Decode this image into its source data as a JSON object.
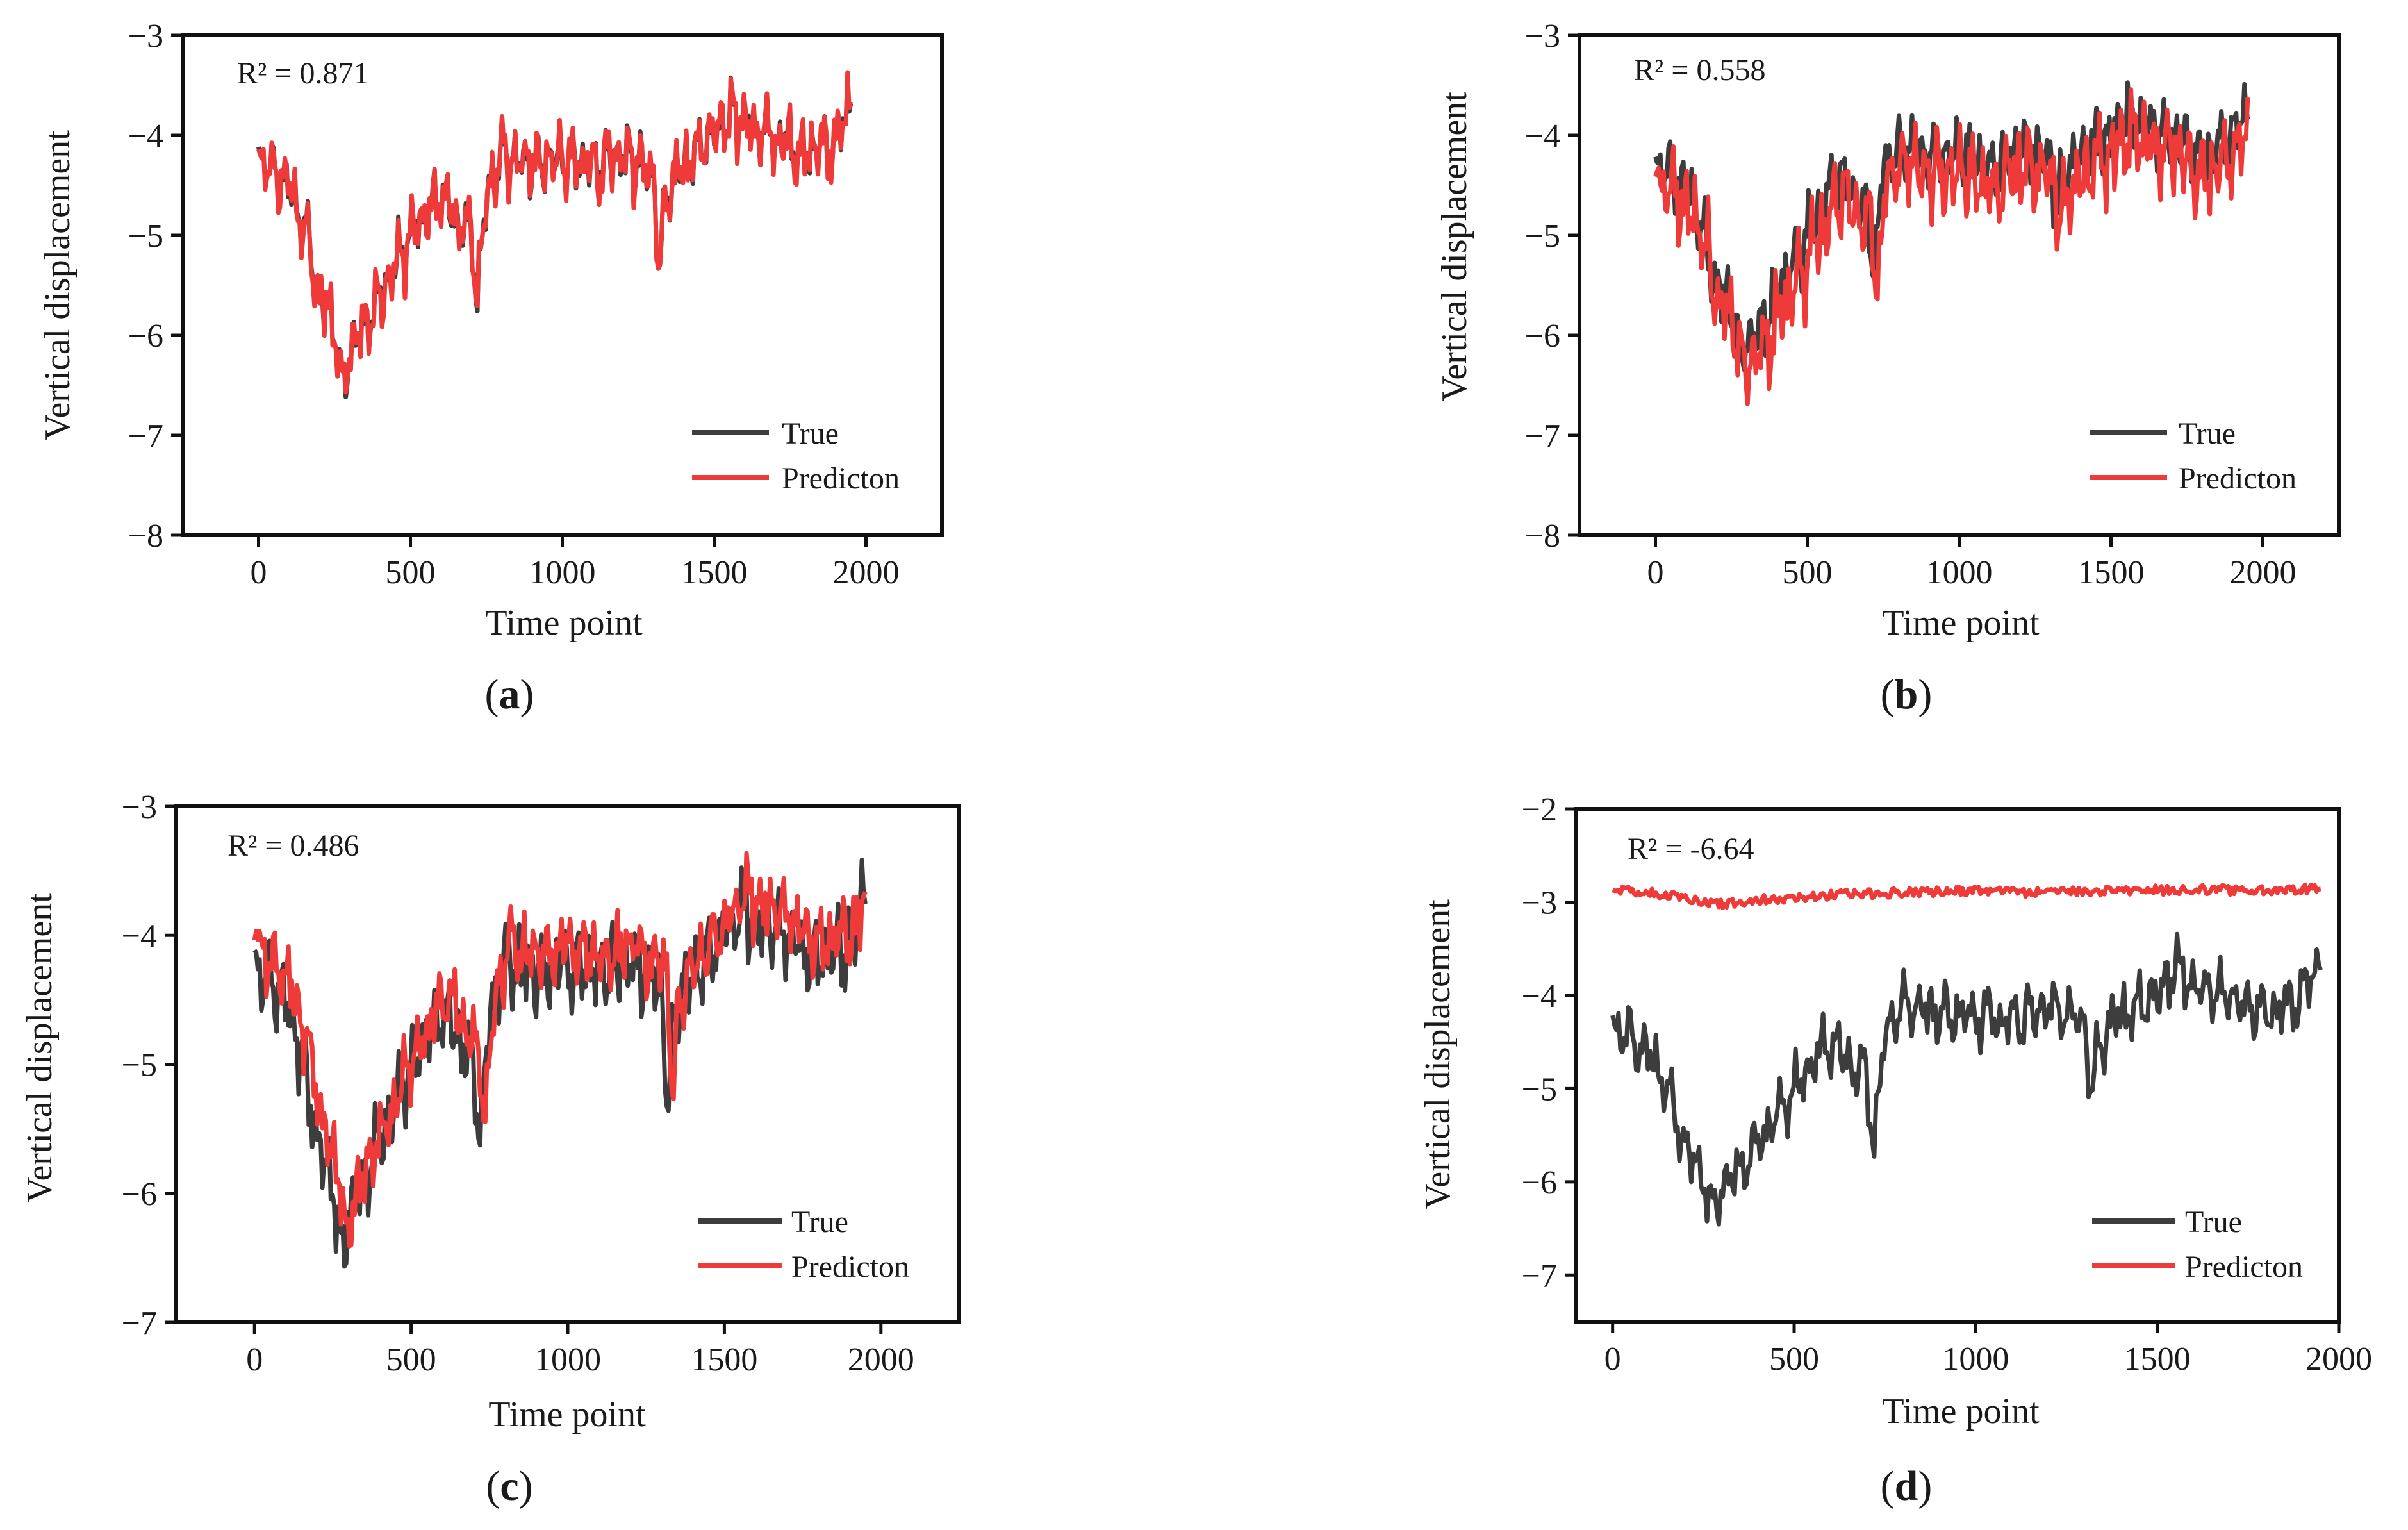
{
  "colors": {
    "true": "#3d3d3d",
    "prediction": "#ef3a3a",
    "axis": "#111111"
  },
  "chart_data": [
    {
      "type": "line",
      "panel_label": "a",
      "annotation": "R² = 0.871",
      "xlabel": "Time point",
      "ylabel": "Vertical displacement",
      "xlim": [
        -250,
        2250
      ],
      "ylim": [
        -8,
        -3
      ],
      "xticks": [
        0,
        500,
        1000,
        1500,
        2000
      ],
      "xtick_labels": [
        "0",
        "500",
        "1000",
        "1500",
        "2000"
      ],
      "yticks": [
        -3,
        -4,
        -5,
        -6,
        -7,
        -8
      ],
      "ytick_labels": [
        "−3",
        "−4",
        "−5",
        "−6",
        "−7",
        "−8"
      ],
      "legend": {
        "position": "bottom-right",
        "entries": [
          "True",
          "Predicton"
        ]
      },
      "pred_mode": "track",
      "pred_offset": 0.0,
      "pred_amp": 1.05,
      "pred_lag": 0,
      "noise": 0.06,
      "seed": 11,
      "series": [
        {
          "name": "True",
          "x": [
            0,
            100,
            150,
            200,
            250,
            280,
            300,
            350,
            400,
            450,
            500,
            550,
            600,
            650,
            700,
            720,
            750,
            800,
            900,
            1000,
            1100,
            1200,
            1300,
            1320,
            1340,
            1400,
            1500,
            1550,
            1600,
            1700,
            1800,
            1850,
            1900,
            1950
          ],
          "y": [
            -4.2,
            -4.5,
            -4.9,
            -5.6,
            -5.9,
            -6.6,
            -6.1,
            -5.9,
            -5.6,
            -5.3,
            -5.0,
            -4.8,
            -4.6,
            -4.8,
            -5.0,
            -5.6,
            -4.6,
            -4.2,
            -4.3,
            -4.2,
            -4.3,
            -4.2,
            -4.4,
            -5.4,
            -4.6,
            -4.3,
            -4.0,
            -3.8,
            -3.9,
            -4.0,
            -4.2,
            -4.1,
            -4.1,
            -3.6
          ]
        },
        {
          "name": "Predicton",
          "y": []
        }
      ]
    },
    {
      "type": "line",
      "panel_label": "b",
      "annotation": "R² = 0.558",
      "xlabel": "Time point",
      "ylabel": "Vertical displacement",
      "xlim": [
        -250,
        2250
      ],
      "ylim": [
        -8,
        -3
      ],
      "xticks": [
        0,
        500,
        1000,
        1500,
        2000
      ],
      "xtick_labels": [
        "0",
        "500",
        "1000",
        "1500",
        "2000"
      ],
      "yticks": [
        -3,
        -4,
        -5,
        -6,
        -7,
        -8
      ],
      "ytick_labels": [
        "−3",
        "−4",
        "−5",
        "−6",
        "−7",
        "−8"
      ],
      "legend": {
        "position": "bottom-right",
        "entries": [
          "True",
          "Predicton"
        ]
      },
      "pred_mode": "track",
      "pred_offset": -0.18,
      "pred_amp": 1.3,
      "pred_lag": 2,
      "noise": 0.1,
      "seed": 23,
      "series": [
        {
          "name": "True",
          "x": [
            0,
            100,
            150,
            200,
            250,
            280,
            300,
            350,
            400,
            450,
            500,
            550,
            600,
            650,
            700,
            720,
            750,
            800,
            900,
            1000,
            1100,
            1200,
            1300,
            1320,
            1340,
            1400,
            1500,
            1550,
            1600,
            1700,
            1800,
            1850,
            1900,
            1950
          ],
          "y": [
            -4.3,
            -4.5,
            -4.9,
            -5.5,
            -5.7,
            -6.2,
            -6.0,
            -5.9,
            -5.6,
            -5.3,
            -5.0,
            -4.7,
            -4.4,
            -4.6,
            -4.8,
            -5.4,
            -4.3,
            -4.1,
            -4.2,
            -4.2,
            -4.3,
            -4.1,
            -4.2,
            -4.9,
            -4.4,
            -4.2,
            -4.0,
            -3.8,
            -3.9,
            -4.0,
            -4.2,
            -4.1,
            -4.0,
            -3.7
          ]
        },
        {
          "name": "Predicton",
          "y": []
        }
      ]
    },
    {
      "type": "line",
      "panel_label": "c",
      "annotation": "R² = 0.486",
      "xlabel": "Time point",
      "ylabel": "Vertical displacement",
      "xlim": [
        -250,
        2250
      ],
      "ylim": [
        -7,
        -3
      ],
      "xticks": [
        0,
        500,
        1000,
        1500,
        2000
      ],
      "xtick_labels": [
        "0",
        "500",
        "1000",
        "1500",
        "2000"
      ],
      "yticks": [
        -3,
        -4,
        -5,
        -6,
        -7
      ],
      "ytick_labels": [
        "−3",
        "−4",
        "−5",
        "−6",
        "−7"
      ],
      "legend": {
        "position": "bottom-right",
        "entries": [
          "True",
          "Predicton"
        ]
      },
      "pred_mode": "track",
      "pred_offset": 0.12,
      "pred_amp": 0.85,
      "pred_lag": 3,
      "noise": 0.07,
      "seed": 37,
      "series": [
        {
          "name": "True",
          "x": [
            0,
            100,
            150,
            200,
            250,
            280,
            300,
            350,
            400,
            450,
            500,
            550,
            600,
            650,
            700,
            720,
            750,
            800,
            900,
            1000,
            1100,
            1200,
            1300,
            1320,
            1340,
            1400,
            1500,
            1550,
            1600,
            1700,
            1800,
            1850,
            1900,
            1950
          ],
          "y": [
            -4.2,
            -4.5,
            -4.9,
            -5.6,
            -5.9,
            -6.6,
            -6.1,
            -5.9,
            -5.6,
            -5.3,
            -5.0,
            -4.8,
            -4.6,
            -4.8,
            -5.0,
            -5.6,
            -4.6,
            -4.2,
            -4.3,
            -4.2,
            -4.3,
            -4.2,
            -4.4,
            -5.4,
            -4.6,
            -4.3,
            -4.0,
            -3.8,
            -3.9,
            -4.0,
            -4.2,
            -4.1,
            -4.1,
            -3.6
          ]
        },
        {
          "name": "Predicton",
          "y": []
        }
      ]
    },
    {
      "type": "line",
      "panel_label": "d",
      "annotation": "R² = -6.64",
      "xlabel": "Time point",
      "ylabel": "Vertical displacement",
      "xlim": [
        -100,
        2000
      ],
      "ylim": [
        -7.5,
        -2
      ],
      "xticks": [
        0,
        500,
        1000,
        1500,
        2000
      ],
      "xtick_labels": [
        "0",
        "500",
        "1000",
        "1500",
        "2000"
      ],
      "yticks": [
        -2,
        -3,
        -4,
        -5,
        -6,
        -7
      ],
      "ytick_labels": [
        "−2",
        "−3",
        "−4",
        "−5",
        "−6",
        "−7"
      ],
      "legend": {
        "position": "bottom-right",
        "entries": [
          "True",
          "Predicton"
        ]
      },
      "pred_mode": "flat",
      "pred_level": -2.9,
      "noise": 0.05,
      "seed": 53,
      "series": [
        {
          "name": "True",
          "x": [
            0,
            100,
            150,
            200,
            250,
            280,
            300,
            350,
            400,
            450,
            500,
            550,
            600,
            650,
            700,
            720,
            750,
            800,
            900,
            1000,
            1100,
            1200,
            1300,
            1320,
            1340,
            1400,
            1500,
            1550,
            1600,
            1700,
            1800,
            1850,
            1900,
            1950
          ],
          "y": [
            -4.3,
            -4.6,
            -5.0,
            -5.6,
            -5.9,
            -6.4,
            -6.0,
            -5.9,
            -5.6,
            -5.3,
            -5.0,
            -4.7,
            -4.5,
            -4.7,
            -4.9,
            -5.6,
            -4.4,
            -4.1,
            -4.2,
            -4.2,
            -4.3,
            -4.1,
            -4.3,
            -5.1,
            -4.5,
            -4.2,
            -4.0,
            -3.7,
            -3.9,
            -4.0,
            -4.2,
            -4.1,
            -4.0,
            -3.6
          ]
        },
        {
          "name": "Predicton",
          "x": [
            0,
            200,
            300,
            400,
            600,
            800,
            1000,
            1200,
            1400,
            1600,
            1800,
            1950
          ],
          "y": [
            -2.85,
            -2.95,
            -3.02,
            -2.98,
            -2.92,
            -2.9,
            -2.88,
            -2.9,
            -2.88,
            -2.86,
            -2.88,
            -2.85
          ]
        }
      ]
    }
  ]
}
